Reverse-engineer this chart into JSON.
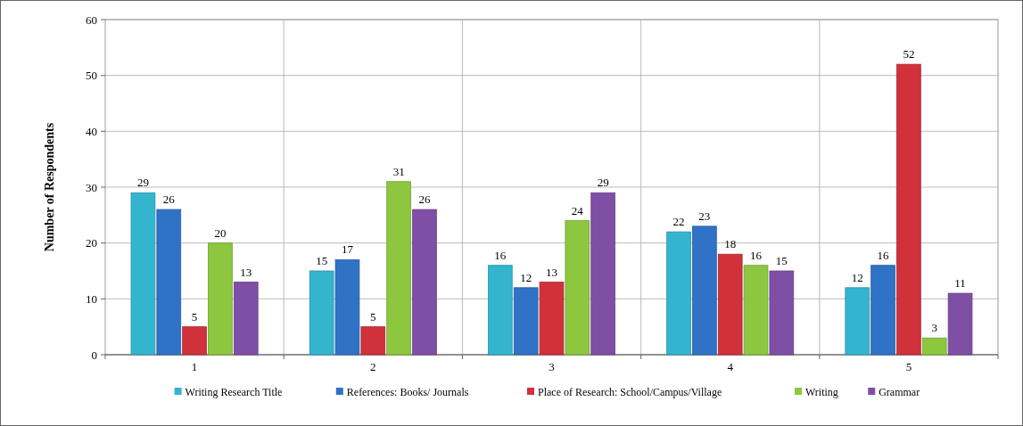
{
  "chart_data": {
    "type": "bar",
    "ylabel": "Number of Respondents",
    "categories": [
      "1",
      "2",
      "3",
      "4",
      "5"
    ],
    "series": [
      {
        "name": "Writing Research Title",
        "color": "#33b5cf",
        "values": [
          29,
          15,
          16,
          22,
          12
        ]
      },
      {
        "name": "References: Books/ Journals",
        "color": "#2f72c6",
        "values": [
          26,
          17,
          12,
          23,
          16
        ]
      },
      {
        "name": "Place of Research: School/Campus/Village",
        "color": "#d0313b",
        "values": [
          5,
          5,
          13,
          18,
          52
        ]
      },
      {
        "name": "Writing",
        "color": "#8dc63f",
        "values": [
          20,
          31,
          24,
          16,
          3
        ]
      },
      {
        "name": "Grammar",
        "color": "#7f4fa6",
        "values": [
          13,
          26,
          29,
          15,
          11
        ]
      }
    ],
    "ylim": [
      0,
      60
    ],
    "yticks": [
      0,
      10,
      20,
      30,
      40,
      50,
      60
    ],
    "grid": true,
    "legend": "bottom",
    "data_labels": true
  }
}
